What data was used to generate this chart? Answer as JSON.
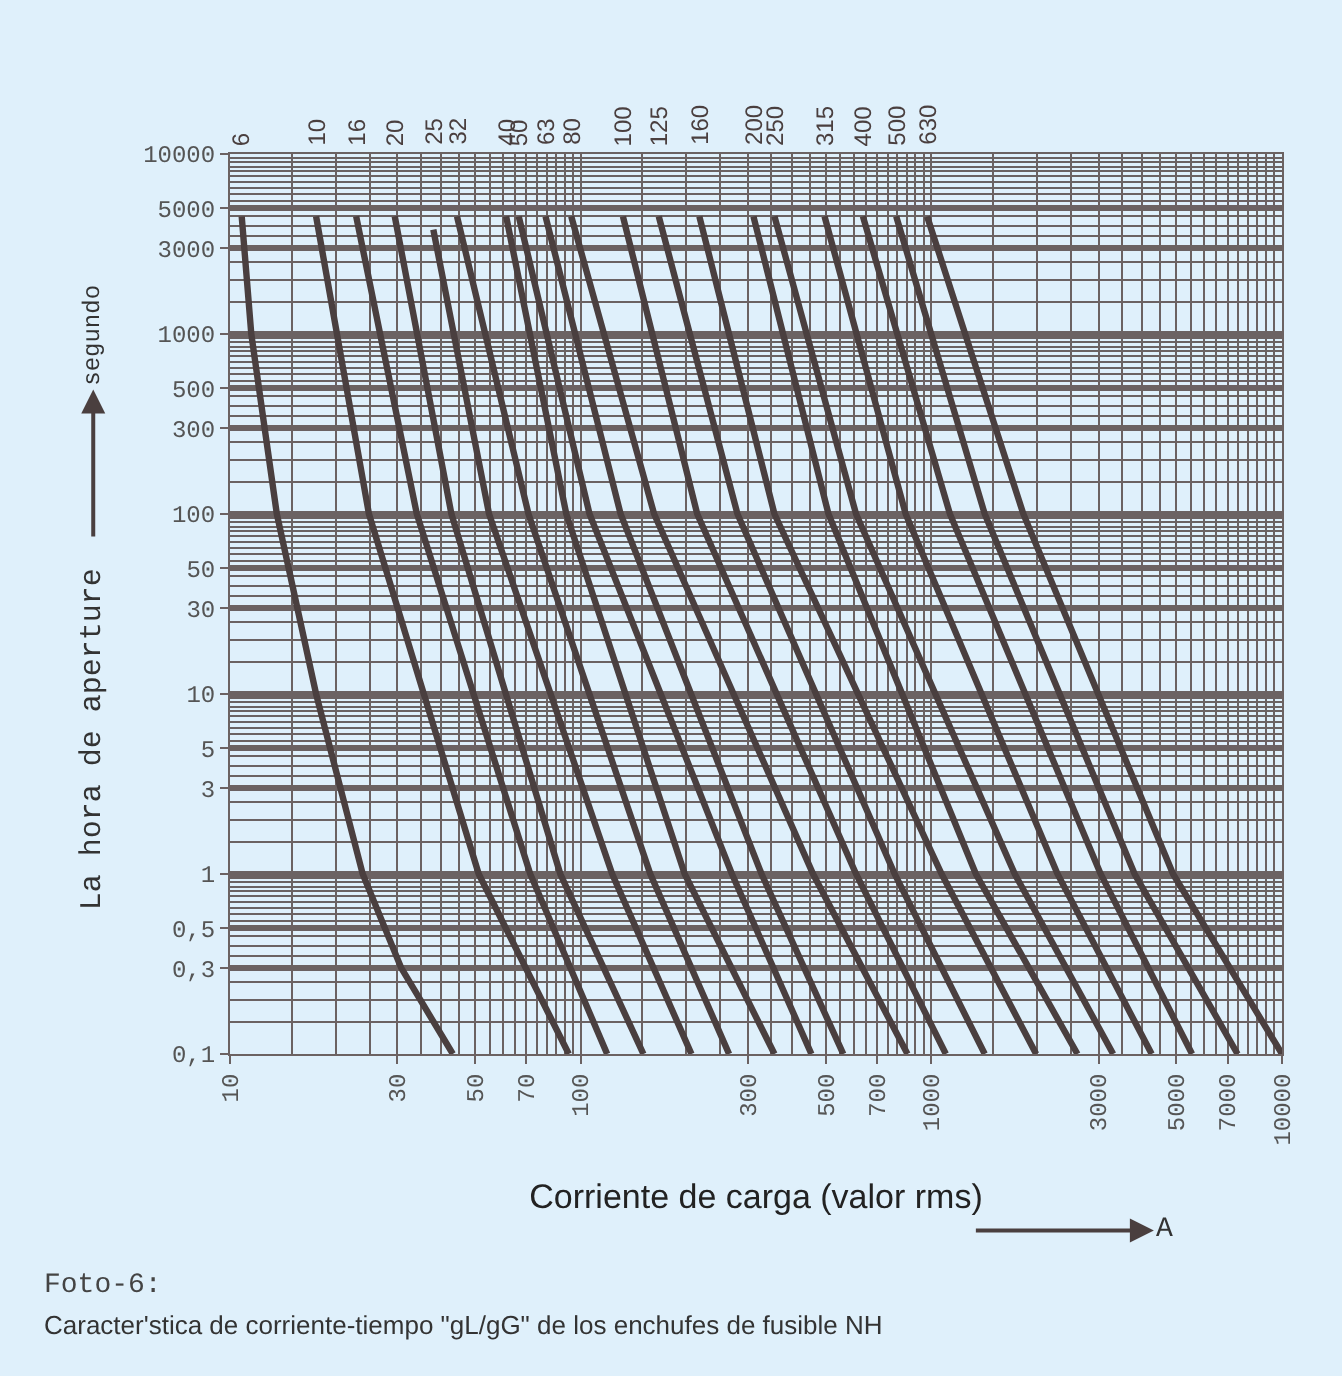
{
  "chart_data": {
    "type": "line",
    "xlabel": "Corriente de carga (valor rms)",
    "ylabel": "La hora de aperture",
    "annotations": [
      "segundo",
      "A",
      "Foto-6:",
      "Caracter'stica de corriente-tiempo \"gL/gG\" de los enchufes de fusible NH"
    ],
    "log": "xy",
    "grid": true,
    "legend": false,
    "marker": "none",
    "line_style": "solid",
    "xlim": [
      10,
      10000
    ],
    "ylim": [
      0.1,
      10000
    ],
    "xticks": [
      10,
      30,
      50,
      70,
      100,
      300,
      500,
      700,
      1000,
      3000,
      5000,
      7000,
      10000
    ],
    "yticks": [
      {
        "value": 0.1,
        "label": "0,1"
      },
      {
        "value": 0.3,
        "label": "0,3"
      },
      {
        "value": 0.5,
        "label": "0,5"
      },
      1,
      3,
      5,
      10,
      30,
      50,
      100,
      300,
      500,
      1000,
      3000,
      5000,
      10000
    ],
    "series": [
      {
        "name": "6",
        "color": "#4a3f3f",
        "x": [
          10.8,
          11.5,
          13.6,
          17.6,
          23.9,
          30.8,
          43.2
        ],
        "values": [
          4500,
          1000,
          100,
          10,
          1,
          0.3,
          0.1
        ]
      },
      {
        "name": "10",
        "color": "#4a3f3f",
        "x": [
          17.6,
          24.9,
          51.2,
          92.5
        ],
        "values": [
          4500,
          100,
          1,
          0.1
        ]
      },
      {
        "name": "16",
        "color": "#4a3f3f",
        "x": [
          22.9,
          34.1,
          71.8,
          119
        ],
        "values": [
          4500,
          100,
          1,
          0.1
        ]
      },
      {
        "name": "20",
        "color": "#4a3f3f",
        "x": [
          29.5,
          42.8,
          87.5,
          151
        ],
        "values": [
          4500,
          100,
          1,
          0.1
        ]
      },
      {
        "name": "25",
        "color": "#4a3f3f",
        "x": [
          38.0,
          54.8,
          123,
          207
        ],
        "values": [
          3800,
          100,
          1,
          0.1
        ]
      },
      {
        "name": "32",
        "color": "#4a3f3f",
        "x": [
          44.4,
          71.0,
          158,
          265
        ],
        "values": [
          4500,
          100,
          1,
          0.1
        ]
      },
      {
        "name": "40",
        "color": "#4a3f3f",
        "x": [
          61.3,
          91.0,
          198,
          357
        ],
        "values": [
          4500,
          100,
          1,
          0.1
        ]
      },
      {
        "name": "50",
        "color": "#4a3f3f",
        "x": [
          66.6,
          106,
          270,
          455
        ],
        "values": [
          4500,
          100,
          1,
          0.1
        ]
      },
      {
        "name": "63",
        "color": "#4a3f3f",
        "x": [
          79.4,
          130,
          328,
          561
        ],
        "values": [
          4500,
          100,
          1,
          0.1
        ]
      },
      {
        "name": "80",
        "color": "#4a3f3f",
        "x": [
          94.0,
          162,
          460,
          855
        ],
        "values": [
          4500,
          100,
          1,
          0.1
        ]
      },
      {
        "name": "100",
        "color": "#4a3f3f",
        "x": [
          132,
          215,
          610,
          1100
        ],
        "values": [
          4500,
          100,
          1,
          0.1
        ]
      },
      {
        "name": "125",
        "color": "#4a3f3f",
        "x": [
          167,
          280,
          786,
          1420
        ],
        "values": [
          4500,
          100,
          1,
          0.1
        ]
      },
      {
        "name": "160",
        "color": "#4a3f3f",
        "x": [
          218,
          357,
          1070,
          1990
        ],
        "values": [
          4500,
          100,
          1,
          0.1
        ]
      },
      {
        "name": "200",
        "color": "#4a3f3f",
        "x": [
          311,
          509,
          1340,
          2610
        ],
        "values": [
          4500,
          100,
          1,
          0.1
        ]
      },
      {
        "name": "250",
        "color": "#4a3f3f",
        "x": [
          357,
          610,
          1730,
          3300
        ],
        "values": [
          4500,
          100,
          1,
          0.1
        ]
      },
      {
        "name": "315",
        "color": "#4a3f3f",
        "x": [
          496,
          845,
          2290,
          4250
        ],
        "values": [
          4500,
          100,
          1,
          0.1
        ]
      },
      {
        "name": "400",
        "color": "#4a3f3f",
        "x": [
          638,
          1130,
          3040,
          5540
        ],
        "values": [
          4500,
          100,
          1,
          0.1
        ]
      },
      {
        "name": "500",
        "color": "#4a3f3f",
        "x": [
          794,
          1420,
          3800,
          7470
        ],
        "values": [
          4500,
          100,
          1,
          0.1
        ]
      },
      {
        "name": "630",
        "color": "#4a3f3f",
        "x": [
          973,
          1830,
          4890,
          10000
        ],
        "values": [
          4500,
          100,
          1,
          0.1
        ]
      }
    ]
  }
}
